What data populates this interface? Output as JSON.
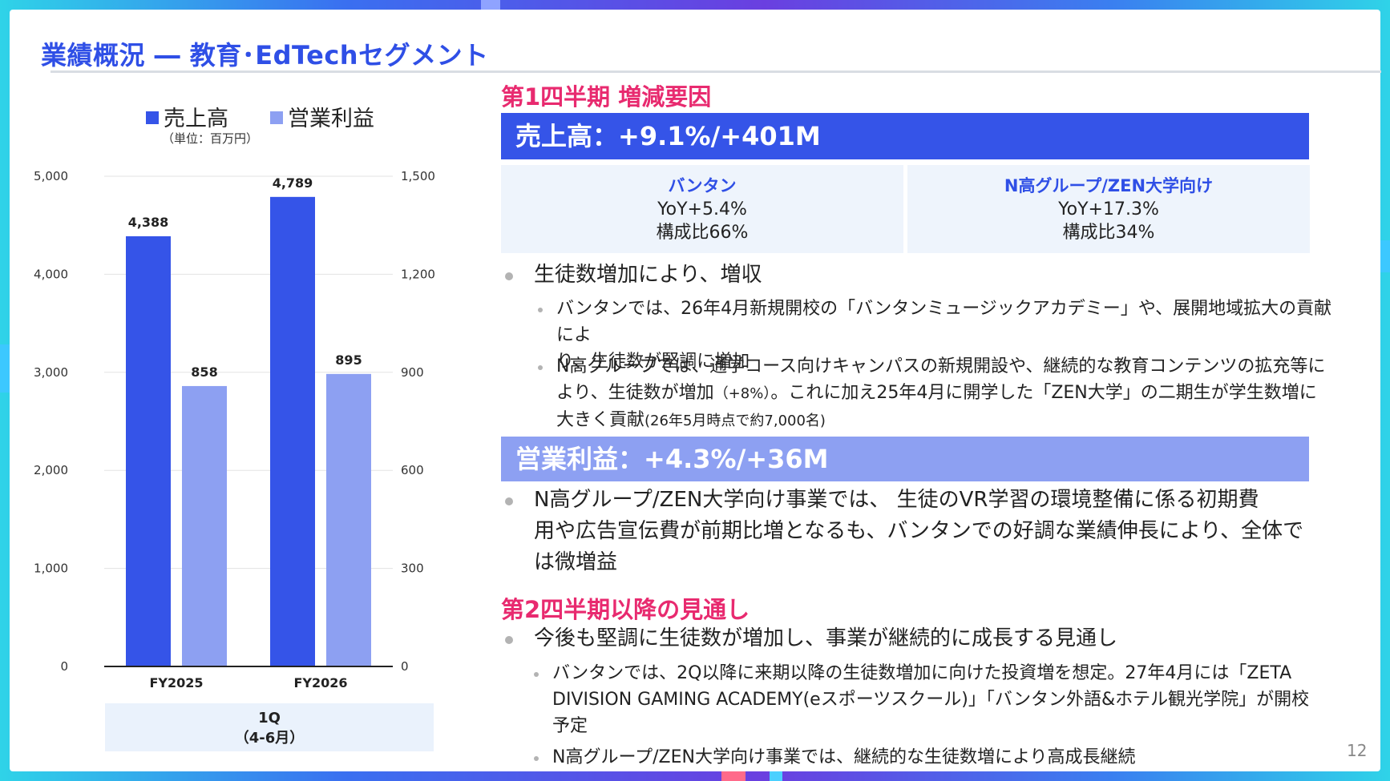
{
  "header": {
    "title": "業績概況 ― 教育･EdTechセグメント"
  },
  "chart_data": {
    "type": "bar",
    "categories": [
      "FY2025",
      "FY2026"
    ],
    "series": [
      {
        "name": "売上高",
        "axis": "left",
        "values": [
          4388,
          4789
        ],
        "labels": [
          "4,388",
          "4,789"
        ],
        "color": "#3554e8"
      },
      {
        "name": "営業利益",
        "axis": "right",
        "values": [
          858,
          895
        ],
        "labels": [
          "858",
          "895"
        ],
        "color": "#8da0f2"
      }
    ],
    "unit_note": "（単位：百万円）",
    "left_axis": {
      "ylim": [
        0,
        5000
      ],
      "ticks": [
        0,
        1000,
        2000,
        3000,
        4000,
        5000
      ],
      "tick_labels": [
        "0",
        "1,000",
        "2,000",
        "3,000",
        "4,000",
        "5,000"
      ]
    },
    "right_axis": {
      "ylim": [
        0,
        1500
      ],
      "ticks": [
        0,
        300,
        600,
        900,
        1200,
        1500
      ],
      "tick_labels": [
        "0",
        "300",
        "600",
        "900",
        "1,200",
        "1,500"
      ]
    },
    "grid": true,
    "legend_position": "top",
    "period_line1": "1Q",
    "period_line2": "（4-6月）"
  },
  "q1": {
    "heading": "第1四半期 増減要因",
    "sales_band": "売上高：+9.1%/+401M",
    "segments": [
      {
        "name": "バンタン",
        "yoy": "YoY+5.4%",
        "ratio": "構成比66%"
      },
      {
        "name": "N高グループ/ZEN大学向け",
        "yoy": "YoY+17.3%",
        "ratio": "構成比34%"
      }
    ],
    "sales_bullet": "生徒数増加により、増収",
    "sales_sub1_l1": "バンタンでは、26年4月新規開校の「バンタンミュージックアカデミー」や、展開地域拡大の貢献によ",
    "sales_sub1_l2": "り、生徒数が堅調に増加",
    "sales_sub2_l1": "N高グループでは、通学コース向けキャンパスの新規開設や、継続的な教育コンテンツの拡充等に",
    "sales_sub2_l2a": "より、生徒数が増加",
    "sales_sub2_l2b": "（+8%）",
    "sales_sub2_l2c": "。これに加え25年4月に開学した「ZEN大学」の二期生が学生数増に",
    "sales_sub2_l3a": "大きく貢献",
    "sales_sub2_l3b": "(26年5月時点で約7,000名)",
    "op_band": "営業利益：+4.3%/+36M",
    "op_bullet_l1": "N高グループ/ZEN大学向け事業では、 生徒のVR学習の環境整備に係る初期費",
    "op_bullet_l2": "用や広告宣伝費が前期比増となるも、バンタンでの好調な業績伸長により、全体で",
    "op_bullet_l3": "は微増益"
  },
  "outlook": {
    "heading": "第2四半期以降の見通し",
    "bullet": "今後も堅調に生徒数が増加し、事業が継続的に成長する見通し",
    "sub1_l1": "バンタンでは、2Q以降に来期以降の生徒数増加に向けた投資増を想定。27年4月には「ZETA",
    "sub1_l2": "DIVISION GAMING ACADEMY(eスポーツスクール)」「バンタン外語&ホテル観光学院」が開校",
    "sub1_l3": "予定",
    "sub2": "N高グループ/ZEN大学向け事業では、継続的な生徒数増により高成長継続"
  },
  "page_number": "12"
}
